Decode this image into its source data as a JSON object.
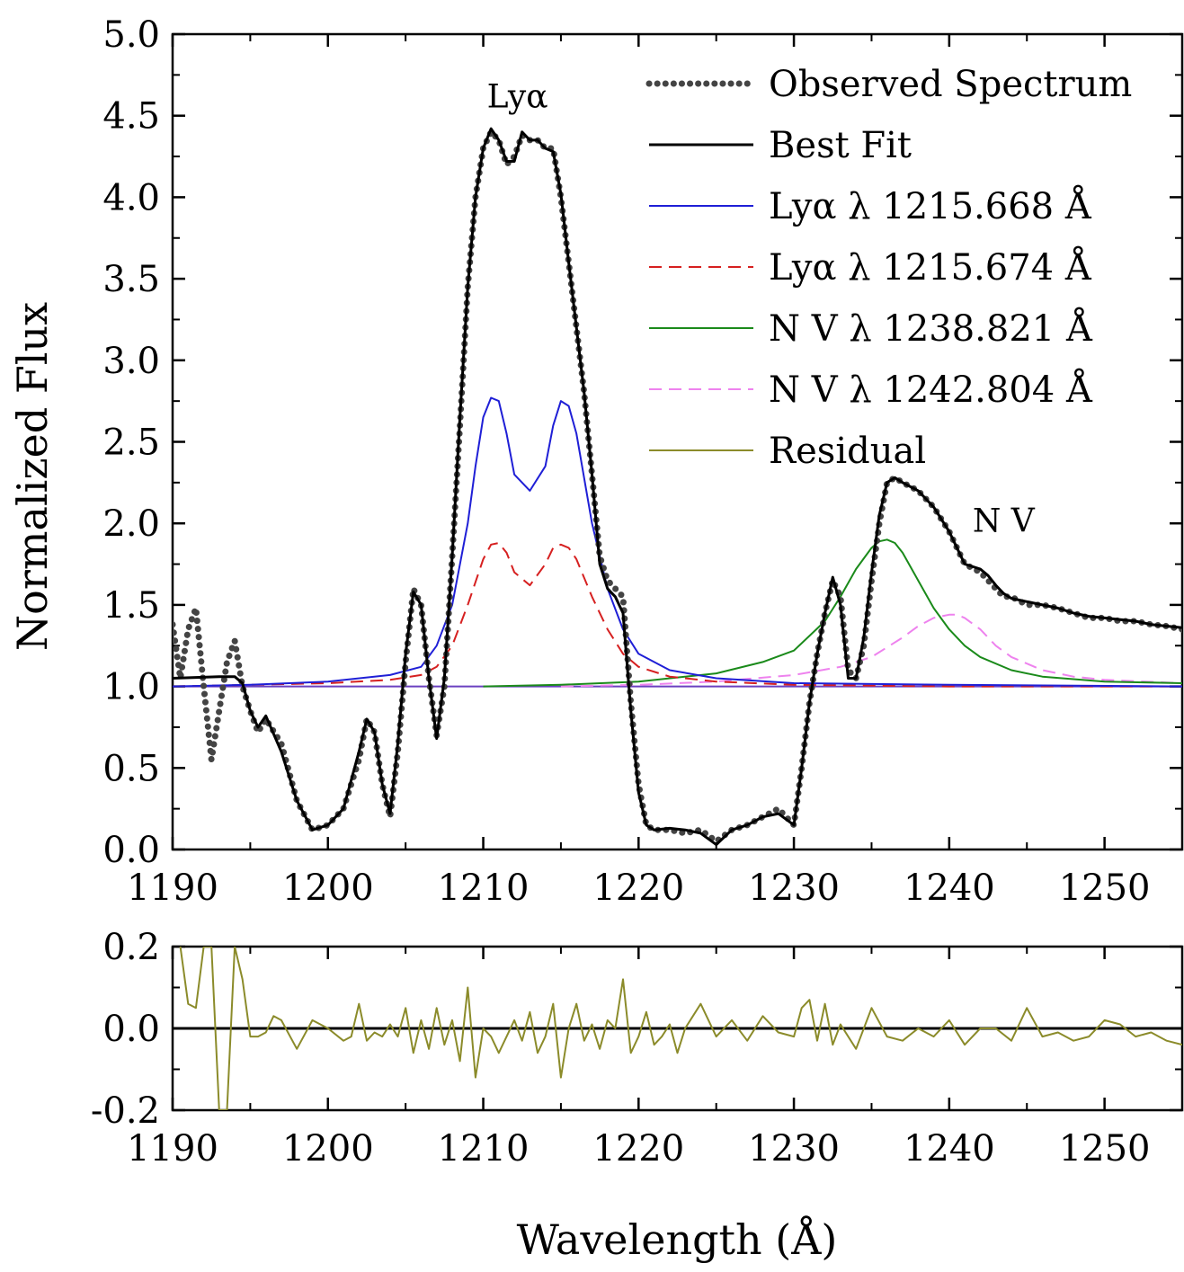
{
  "chart_data": [
    {
      "type": "line",
      "title": "",
      "xlabel": "Wavelength (Å)",
      "ylabel": "Normalized Flux",
      "xlim": [
        1190,
        1255
      ],
      "ylim": [
        0.0,
        5.0
      ],
      "x_ticks": [
        1190,
        1200,
        1210,
        1220,
        1230,
        1240,
        1250
      ],
      "x_tick_labels": [
        "1190",
        "1200",
        "1210",
        "1220",
        "1230",
        "1240",
        "1250"
      ],
      "y_ticks": [
        0.0,
        0.5,
        1.0,
        1.5,
        2.0,
        2.5,
        3.0,
        3.5,
        4.0,
        4.5,
        5.0
      ],
      "y_tick_labels": [
        "0.0",
        "0.5",
        "1.0",
        "1.5",
        "2.0",
        "2.5",
        "3.0",
        "3.5",
        "4.0",
        "4.5",
        "5.0"
      ],
      "legend_position": "top-right",
      "annotations": [
        {
          "text": "Lyα",
          "x": 1212.2,
          "y": 4.55
        },
        {
          "text": "N V",
          "x": 1243.5,
          "y": 1.95
        }
      ],
      "series": [
        {
          "name": "Observed Spectrum",
          "style": "dotted",
          "color": "#444444",
          "x": [
            1190,
            1190.5,
            1191,
            1191.5,
            1192,
            1192.5,
            1193,
            1193.5,
            1194,
            1194.5,
            1195,
            1195.5,
            1196,
            1197,
            1198,
            1199,
            1200,
            1201,
            1202,
            1202.5,
            1203,
            1203.5,
            1204,
            1204.5,
            1205,
            1205.5,
            1206,
            1206.5,
            1207,
            1207.5,
            1208,
            1208.5,
            1209,
            1209.5,
            1210,
            1210.5,
            1211,
            1211.5,
            1212,
            1212.5,
            1213,
            1213.5,
            1214,
            1214.5,
            1215,
            1215.5,
            1216,
            1216.5,
            1217,
            1217.5,
            1218,
            1218.5,
            1219,
            1219.5,
            1220,
            1220.5,
            1221,
            1222,
            1223,
            1224,
            1225,
            1226,
            1227,
            1228,
            1229,
            1230,
            1230.5,
            1231,
            1231.5,
            1232,
            1232.5,
            1233,
            1233.5,
            1234,
            1234.5,
            1235,
            1235.5,
            1236,
            1236.5,
            1237,
            1238,
            1239,
            1240,
            1241,
            1242,
            1242.5,
            1243,
            1243.5,
            1244,
            1245,
            1246,
            1247,
            1248,
            1249,
            1250,
            1251,
            1252,
            1253,
            1254,
            1255
          ],
          "y": [
            1.38,
            1.05,
            1.35,
            1.48,
            1.0,
            0.55,
            0.85,
            1.15,
            1.28,
            1.0,
            0.85,
            0.72,
            0.8,
            0.65,
            0.3,
            0.12,
            0.15,
            0.25,
            0.55,
            0.8,
            0.72,
            0.4,
            0.2,
            0.6,
            1.15,
            1.6,
            1.5,
            1.05,
            0.7,
            1.0,
            1.8,
            2.6,
            3.45,
            4.0,
            4.3,
            4.4,
            4.35,
            4.2,
            4.25,
            4.38,
            4.35,
            4.35,
            4.3,
            4.3,
            4.0,
            3.6,
            3.2,
            2.8,
            2.3,
            1.8,
            1.65,
            1.6,
            1.55,
            0.9,
            0.4,
            0.15,
            0.12,
            0.12,
            0.1,
            0.12,
            0.05,
            0.12,
            0.15,
            0.2,
            0.25,
            0.15,
            0.5,
            0.9,
            1.2,
            1.45,
            1.65,
            1.55,
            1.1,
            1.05,
            1.25,
            1.65,
            2.0,
            2.25,
            2.28,
            2.25,
            2.2,
            2.1,
            1.95,
            1.75,
            1.7,
            1.65,
            1.6,
            1.55,
            1.55,
            1.5,
            1.5,
            1.48,
            1.45,
            1.42,
            1.42,
            1.4,
            1.4,
            1.38,
            1.37,
            1.35
          ]
        },
        {
          "name": "Best Fit",
          "style": "solid",
          "color": "#000000",
          "x": [
            1190,
            1193,
            1194,
            1194.5,
            1195,
            1195.5,
            1196,
            1197,
            1198,
            1199,
            1200,
            1201,
            1202,
            1202.5,
            1203,
            1203.5,
            1204,
            1204.5,
            1205,
            1205.5,
            1206,
            1206.5,
            1207,
            1207.5,
            1208,
            1208.5,
            1209,
            1209.5,
            1210,
            1210.5,
            1211,
            1211.5,
            1212,
            1212.5,
            1213,
            1213.5,
            1214,
            1214.5,
            1215,
            1215.5,
            1216,
            1216.5,
            1217,
            1217.5,
            1218,
            1218.5,
            1219,
            1219.5,
            1220,
            1220.5,
            1221,
            1222,
            1223,
            1224,
            1225,
            1226,
            1227,
            1228,
            1229,
            1230,
            1230.5,
            1231,
            1231.5,
            1232,
            1232.5,
            1233,
            1233.5,
            1234,
            1234.5,
            1235,
            1235.5,
            1236,
            1236.5,
            1237,
            1238,
            1239,
            1240,
            1241,
            1242,
            1242.5,
            1243,
            1243.5,
            1244,
            1245,
            1246,
            1247,
            1248,
            1249,
            1250,
            1251,
            1252,
            1253,
            1254,
            1255
          ],
          "y": [
            1.05,
            1.06,
            1.06,
            1.02,
            0.85,
            0.75,
            0.82,
            0.6,
            0.3,
            0.12,
            0.15,
            0.25,
            0.6,
            0.8,
            0.72,
            0.4,
            0.22,
            0.65,
            1.2,
            1.58,
            1.5,
            1.05,
            0.68,
            1.05,
            1.8,
            2.65,
            3.45,
            4.0,
            4.3,
            4.42,
            4.35,
            4.22,
            4.22,
            4.4,
            4.35,
            4.35,
            4.3,
            4.28,
            4.02,
            3.6,
            3.2,
            2.8,
            2.3,
            1.75,
            1.6,
            1.55,
            1.45,
            0.85,
            0.35,
            0.15,
            0.12,
            0.13,
            0.12,
            0.1,
            0.03,
            0.12,
            0.15,
            0.2,
            0.22,
            0.15,
            0.5,
            0.9,
            1.2,
            1.45,
            1.67,
            1.5,
            1.05,
            1.05,
            1.3,
            1.7,
            2.05,
            2.25,
            2.28,
            2.25,
            2.2,
            2.1,
            1.95,
            1.75,
            1.72,
            1.68,
            1.62,
            1.57,
            1.54,
            1.52,
            1.5,
            1.48,
            1.45,
            1.43,
            1.42,
            1.41,
            1.4,
            1.38,
            1.37,
            1.36
          ]
        },
        {
          "name": "Lyα λ 1215.668  Å",
          "style": "solid",
          "color": "#1f1fd6",
          "x": [
            1190,
            1195,
            1200,
            1204,
            1206,
            1207,
            1208,
            1209,
            1209.5,
            1210,
            1210.5,
            1211,
            1211.5,
            1212,
            1213,
            1214,
            1214.5,
            1215,
            1215.5,
            1216,
            1217,
            1218,
            1219,
            1220,
            1222,
            1225,
            1230,
            1240,
            1255
          ],
          "y": [
            1.0,
            1.01,
            1.03,
            1.07,
            1.12,
            1.25,
            1.5,
            2.0,
            2.35,
            2.65,
            2.77,
            2.75,
            2.55,
            2.3,
            2.2,
            2.35,
            2.6,
            2.75,
            2.72,
            2.55,
            2.0,
            1.6,
            1.35,
            1.2,
            1.1,
            1.05,
            1.02,
            1.01,
            1.0
          ]
        },
        {
          "name": "Lyα λ 1215.674  Å",
          "style": "dashed",
          "color": "#d62020",
          "x": [
            1190,
            1195,
            1200,
            1204,
            1206,
            1207,
            1208,
            1209,
            1210,
            1210.5,
            1211,
            1211.5,
            1212,
            1213,
            1214,
            1214.5,
            1215,
            1215.5,
            1216,
            1217,
            1218,
            1219,
            1220,
            1222,
            1225,
            1230,
            1240,
            1255
          ],
          "y": [
            1.0,
            1.01,
            1.02,
            1.04,
            1.07,
            1.12,
            1.25,
            1.5,
            1.78,
            1.87,
            1.88,
            1.82,
            1.7,
            1.62,
            1.75,
            1.85,
            1.87,
            1.85,
            1.78,
            1.55,
            1.35,
            1.2,
            1.12,
            1.06,
            1.03,
            1.01,
            1.0,
            1.0
          ]
        },
        {
          "name": "N V λ 1238.821 Å",
          "style": "solid",
          "color": "#1a8a1a",
          "x": [
            1210,
            1215,
            1220,
            1225,
            1228,
            1230,
            1232,
            1233,
            1234,
            1235,
            1235.5,
            1236,
            1236.5,
            1237,
            1238,
            1239,
            1240,
            1241,
            1242,
            1244,
            1246,
            1250,
            1255
          ],
          "y": [
            1.0,
            1.01,
            1.03,
            1.08,
            1.15,
            1.22,
            1.4,
            1.55,
            1.72,
            1.85,
            1.89,
            1.9,
            1.88,
            1.82,
            1.65,
            1.48,
            1.35,
            1.25,
            1.18,
            1.1,
            1.06,
            1.03,
            1.02
          ]
        },
        {
          "name": "N V λ 1242.804 Å",
          "style": "dashed",
          "color": "#ee82ee",
          "x": [
            1215,
            1220,
            1225,
            1230,
            1233,
            1235,
            1237,
            1238,
            1239,
            1240,
            1240.5,
            1241,
            1242,
            1243,
            1244,
            1246,
            1248,
            1250,
            1255
          ],
          "y": [
            1.0,
            1.01,
            1.03,
            1.07,
            1.12,
            1.18,
            1.3,
            1.37,
            1.42,
            1.44,
            1.44,
            1.42,
            1.35,
            1.25,
            1.18,
            1.1,
            1.06,
            1.04,
            1.02
          ]
        },
        {
          "name": "Residual",
          "style": "solid",
          "color": "#8b8b2a",
          "x": [
            1190.5,
            1191,
            1191.5,
            1192,
            1192.5,
            1193,
            1193.5,
            1194,
            1194.5,
            1195,
            1195.5,
            1196,
            1196.5,
            1197,
            1198,
            1199,
            1200,
            1201,
            1201.5,
            1202,
            1202.5,
            1203,
            1203.5,
            1204,
            1204.5,
            1205,
            1205.5,
            1206,
            1206.5,
            1207,
            1207.5,
            1208,
            1208.5,
            1209,
            1209.5,
            1210,
            1210.5,
            1211,
            1211.5,
            1212,
            1212.5,
            1213,
            1213.5,
            1214,
            1214.5,
            1215,
            1215.5,
            1216,
            1216.5,
            1217,
            1217.5,
            1218,
            1218.5,
            1219,
            1219.5,
            1220,
            1220.5,
            1221,
            1221.5,
            1222,
            1222.5,
            1223,
            1224,
            1225,
            1226,
            1227,
            1228,
            1229,
            1230,
            1230.5,
            1231,
            1231.5,
            1232,
            1232.5,
            1233,
            1234,
            1235,
            1236,
            1237,
            1238,
            1239,
            1240,
            1241,
            1242,
            1243,
            1244,
            1245,
            1246,
            1247,
            1248,
            1249,
            1250,
            1251,
            1252,
            1253,
            1254,
            1255
          ],
          "y": [
            0.2,
            0.06,
            0.05,
            0.2,
            0.2,
            -0.2,
            -0.2,
            0.2,
            0.12,
            -0.02,
            -0.02,
            -0.01,
            0.03,
            0.02,
            -0.05,
            0.02,
            0.0,
            -0.03,
            -0.02,
            0.06,
            -0.03,
            -0.01,
            -0.02,
            0.01,
            -0.02,
            0.05,
            -0.06,
            0.02,
            -0.05,
            0.05,
            -0.04,
            0.02,
            -0.08,
            0.1,
            -0.12,
            0.0,
            -0.02,
            -0.06,
            -0.02,
            0.02,
            -0.03,
            0.04,
            -0.06,
            -0.02,
            0.06,
            -0.12,
            0.0,
            0.06,
            -0.03,
            0.01,
            -0.05,
            0.02,
            0.0,
            0.12,
            -0.06,
            -0.02,
            0.04,
            -0.04,
            -0.02,
            0.01,
            -0.06,
            0.0,
            0.06,
            -0.02,
            0.02,
            -0.03,
            0.03,
            -0.01,
            -0.02,
            0.05,
            0.07,
            -0.03,
            0.06,
            -0.04,
            0.01,
            -0.05,
            0.05,
            -0.02,
            -0.03,
            0.0,
            -0.02,
            0.02,
            -0.04,
            0.0,
            0.0,
            -0.03,
            0.05,
            -0.02,
            -0.01,
            -0.03,
            -0.02,
            0.02,
            0.01,
            -0.02,
            -0.01,
            -0.03,
            -0.04
          ]
        }
      ]
    },
    {
      "type": "line",
      "title": "",
      "xlabel": "Wavelength (Å)",
      "ylabel": "",
      "xlim": [
        1190,
        1255
      ],
      "ylim": [
        -0.2,
        0.2
      ],
      "x_ticks": [
        1190,
        1200,
        1210,
        1220,
        1230,
        1240,
        1250
      ],
      "x_tick_labels": [
        "1190",
        "1200",
        "1210",
        "1220",
        "1230",
        "1240",
        "1250"
      ],
      "y_ticks": [
        -0.2,
        0.0,
        0.2
      ],
      "y_tick_labels": [
        "-0.2",
        "0.0",
        "0.2"
      ],
      "zero_line": true,
      "series_ref": "Residual"
    }
  ]
}
